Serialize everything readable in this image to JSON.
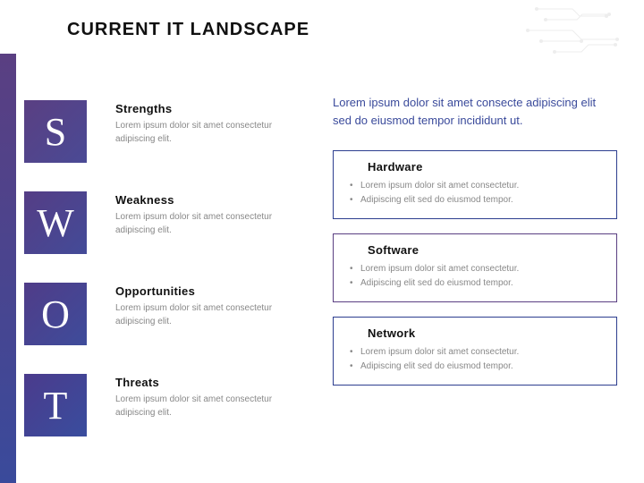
{
  "title": "CURRENT IT LANDSCAPE",
  "colors": {
    "stripe_top": "#5a3f82",
    "stripe_bottom": "#3a4a9b",
    "text_dark": "#111111",
    "text_muted": "#888888",
    "intro_text": "#3a4a9b",
    "circuit": "#cccccc"
  },
  "swot": [
    {
      "letter": "S",
      "heading": "Strengths",
      "body": "Lorem ipsum dolor sit amet consectetur adipiscing elit.",
      "tile_gradient_from": "#5a3f82",
      "tile_gradient_to": "#4a4a95"
    },
    {
      "letter": "W",
      "heading": "Weakness",
      "body": "Lorem ipsum dolor sit amet consectetur adipiscing elit.",
      "tile_gradient_from": "#553d85",
      "tile_gradient_to": "#434b98"
    },
    {
      "letter": "O",
      "heading": "Opportunities",
      "body": "Lorem ipsum dolor sit amet consectetur adipiscing elit.",
      "tile_gradient_from": "#503c88",
      "tile_gradient_to": "#3e4c9b"
    },
    {
      "letter": "T",
      "heading": "Threats",
      "body": "Lorem ipsum dolor sit amet consectetur adipiscing elit.",
      "tile_gradient_from": "#4b3b8c",
      "tile_gradient_to": "#394d9e"
    }
  ],
  "intro": "Lorem ipsum dolor sit amet consecte adipiscing elit sed do eiusmod tempor incididunt ut.",
  "cards": [
    {
      "title": "Hardware",
      "border_color": "#2d3e8f",
      "bullets": [
        "Lorem ipsum dolor sit amet consectetur.",
        "Adipiscing elit sed do eiusmod tempor."
      ]
    },
    {
      "title": "Software",
      "border_color": "#5a3f82",
      "bullets": [
        "Lorem ipsum dolor sit amet consectetur.",
        "Adipiscing elit sed do eiusmod tempor."
      ]
    },
    {
      "title": "Network",
      "border_color": "#2d3e8f",
      "bullets": [
        "Lorem ipsum dolor sit amet consectetur.",
        "Adipiscing elit sed do eiusmod tempor."
      ]
    }
  ]
}
